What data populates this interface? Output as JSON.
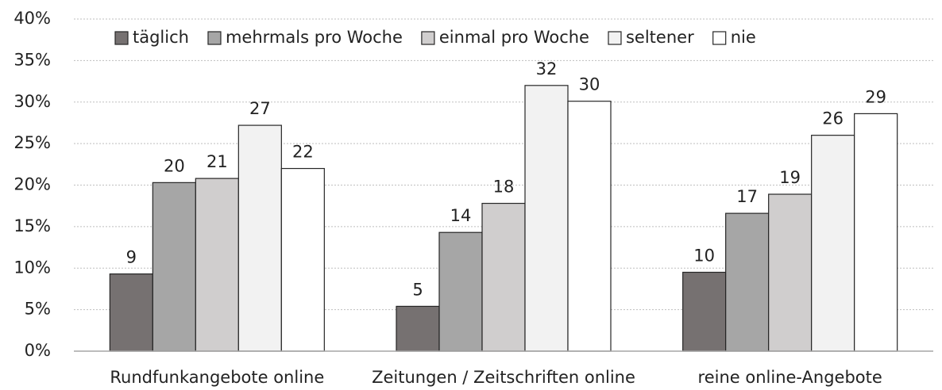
{
  "chart_data": {
    "type": "bar",
    "categories": [
      "Rundfunkangebote online",
      "Zeitungen / Zeitschriften online",
      "reine online-Angebote"
    ],
    "series": [
      {
        "name": "täglich",
        "color": "#767171",
        "values": [
          9.3,
          5.4,
          9.5
        ],
        "value_labels": [
          "9",
          "5",
          "10"
        ]
      },
      {
        "name": "mehrmals pro Woche",
        "color": "#a6a6a6",
        "values": [
          20.3,
          14.3,
          16.6
        ],
        "value_labels": [
          "20",
          "14",
          "17"
        ]
      },
      {
        "name": "einmal pro Woche",
        "color": "#d0cece",
        "values": [
          20.8,
          17.8,
          18.9
        ],
        "value_labels": [
          "21",
          "18",
          "19"
        ]
      },
      {
        "name": "seltener",
        "color": "#f2f2f2",
        "values": [
          27.2,
          32.0,
          26.0
        ],
        "value_labels": [
          "27",
          "32",
          "26"
        ]
      },
      {
        "name": "nie",
        "color": "#ffffff",
        "values": [
          22.0,
          30.1,
          28.6
        ],
        "value_labels": [
          "22",
          "30",
          "29"
        ]
      }
    ],
    "ylim": [
      0,
      40
    ],
    "yticks": [
      {
        "value": 0,
        "label": "0%"
      },
      {
        "value": 5,
        "label": "5%"
      },
      {
        "value": 10,
        "label": "10%"
      },
      {
        "value": 15,
        "label": "15%"
      },
      {
        "value": 20,
        "label": "20%"
      },
      {
        "value": 25,
        "label": "25%"
      },
      {
        "value": 30,
        "label": "30%"
      },
      {
        "value": 35,
        "label": "35%"
      },
      {
        "value": 40,
        "label": "40%"
      }
    ],
    "grid": true,
    "legend": "top"
  }
}
